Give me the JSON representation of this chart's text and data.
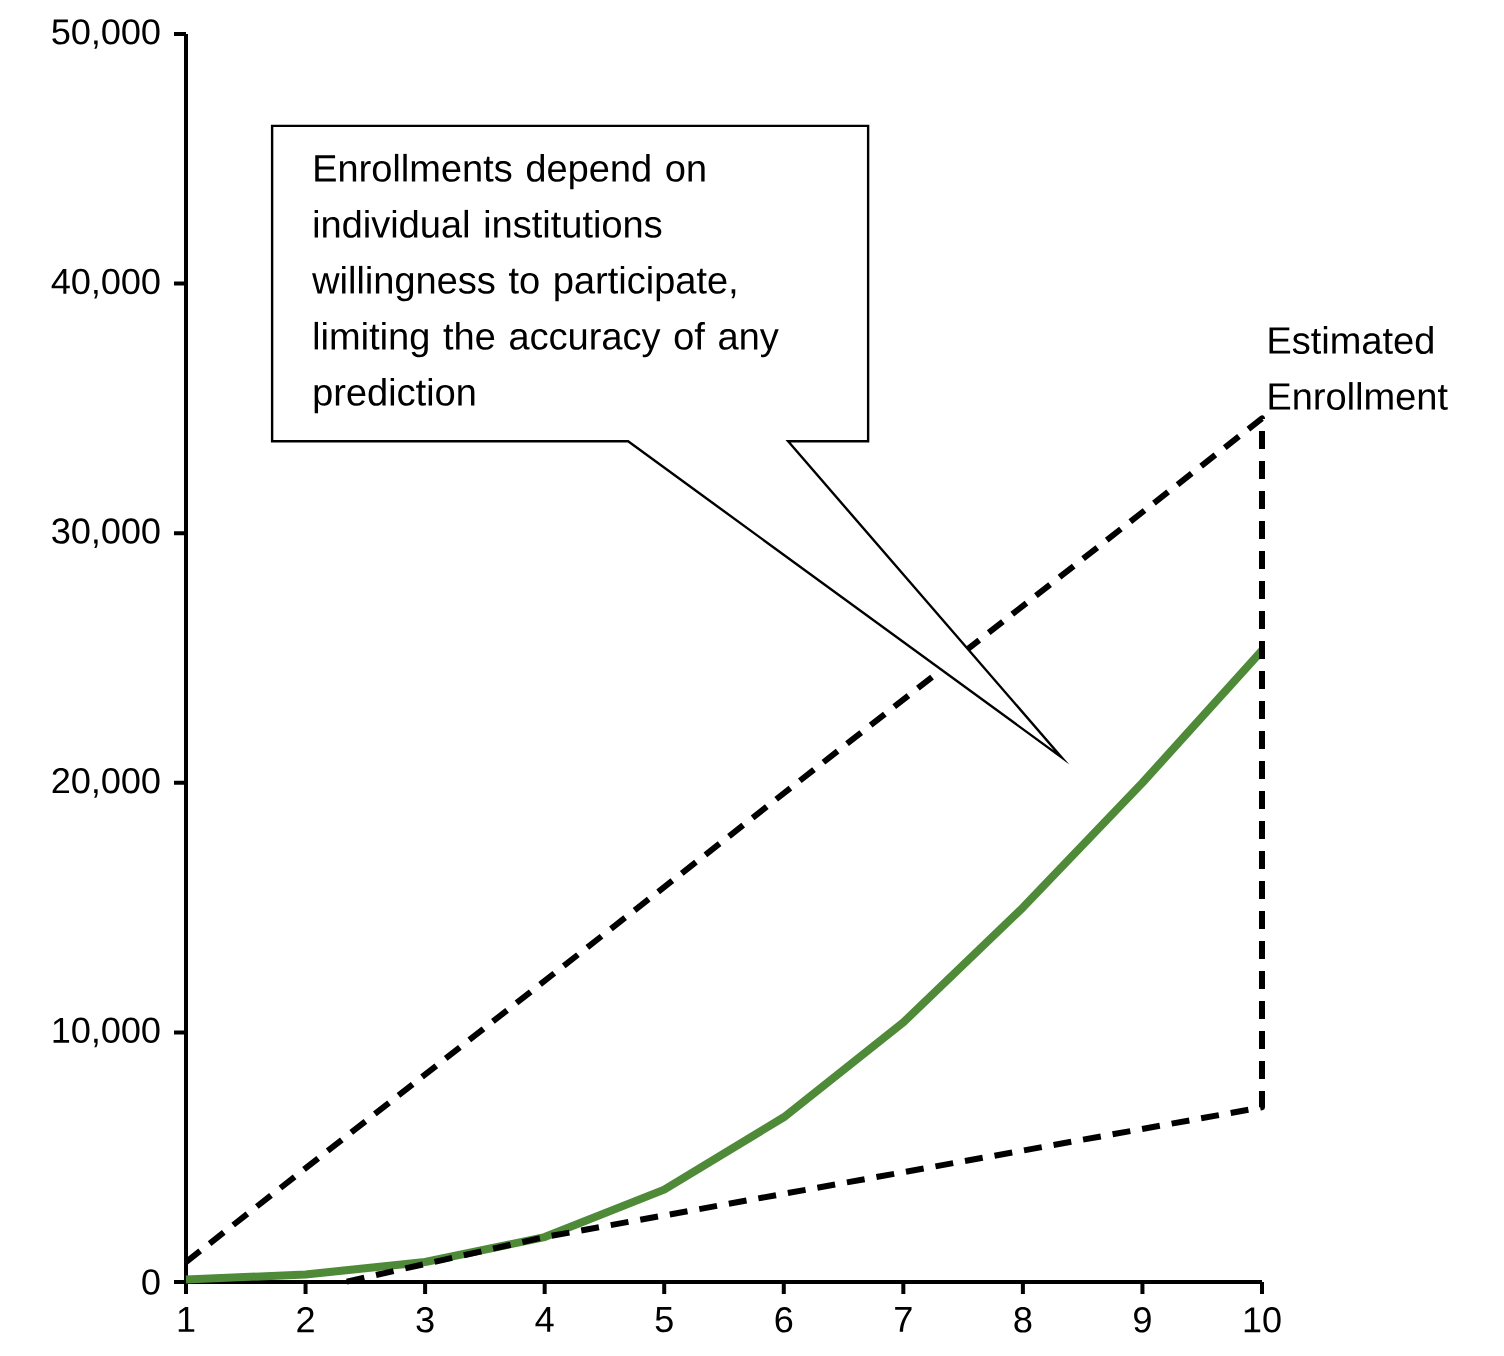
{
  "chart_data": {
    "type": "line",
    "x": [
      1,
      2,
      3,
      4,
      5,
      6,
      7,
      8,
      9,
      10
    ],
    "series": [
      {
        "color": "#4e8a37",
        "line_style": "solid",
        "values": [
          100,
          300,
          800,
          1800,
          3700,
          6600,
          10400,
          15000,
          20000,
          25300
        ]
      },
      {
        "name": "Estimated Enrollment",
        "color": "#000000",
        "line_style": "dashed",
        "x": [
          1,
          10,
          10,
          4,
          2.33
        ],
        "values": [
          800,
          34600,
          7000,
          1800,
          0
        ]
      }
    ],
    "xlim": [
      1,
      10
    ],
    "ylim": [
      0,
      50000
    ],
    "xticks": [
      1,
      2,
      3,
      4,
      5,
      6,
      7,
      8,
      9,
      10
    ],
    "yticks": [
      0,
      {
        "value": 10000,
        "label": "10,000"
      },
      {
        "value": 20000,
        "label": "20,000"
      },
      {
        "value": 30000,
        "label": "30,000"
      },
      {
        "value": 40000,
        "label": "40,000"
      },
      {
        "value": 50000,
        "label": "50,000"
      }
    ],
    "annotations": [
      "Enrollments depend on individual institutions willingness to participate, limiting the accuracy of any prediction"
    ]
  }
}
